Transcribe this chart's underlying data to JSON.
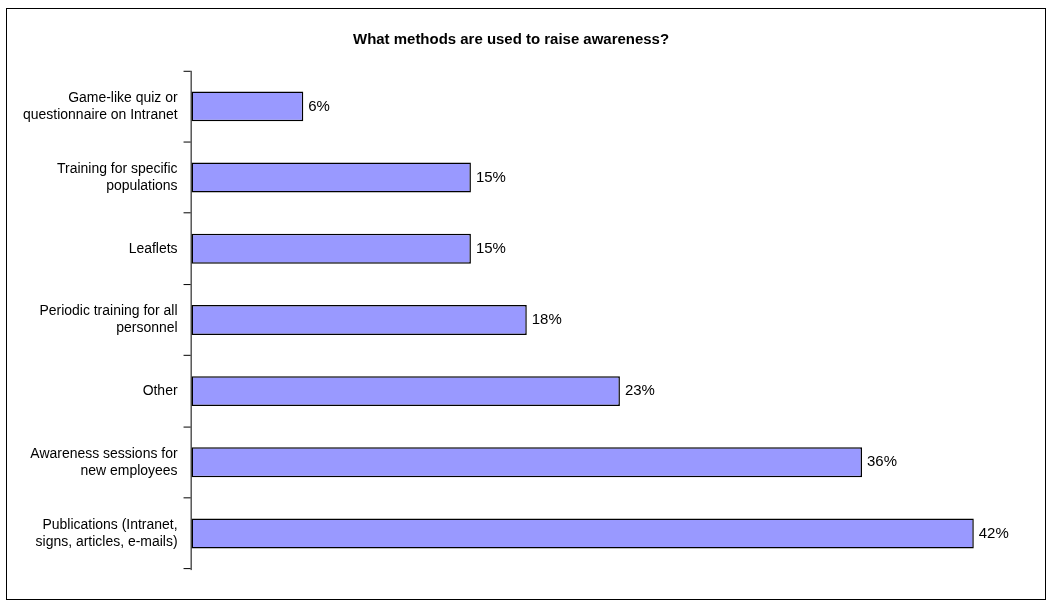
{
  "chart_data": {
    "type": "bar",
    "orientation": "horizontal",
    "title": "What methods are used to raise awareness?",
    "categories": [
      "Game-like quiz or questionnaire on Intranet",
      "Training for specific populations",
      "Leaflets",
      "Periodic training for all personnel",
      "Other",
      "Awareness sessions for new employees",
      "Publications (Intranet, signs, articles, e-mails)"
    ],
    "values": [
      6,
      15,
      15,
      18,
      23,
      36,
      42
    ],
    "color": "#9999ff",
    "value_labels": [
      "6%",
      "15%",
      "15%",
      "18%",
      "23%",
      "36%",
      "42%"
    ],
    "legend": false,
    "tick_labels": "y"
  }
}
